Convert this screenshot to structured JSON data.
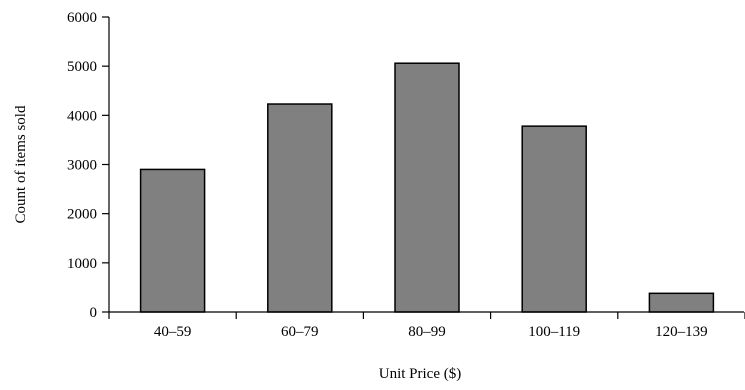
{
  "chart_data": {
    "type": "bar",
    "title": "",
    "xlabel": "Unit Price ($)",
    "ylabel": "Count of items sold",
    "categories": [
      "40–59",
      "60–79",
      "80–99",
      "100–119",
      "120–139"
    ],
    "values": [
      2900,
      4230,
      5060,
      3780,
      380
    ],
    "ylim": [
      0,
      6000
    ],
    "yticks": [
      "0",
      "1000",
      "2000",
      "3000",
      "4000",
      "5000",
      "6000"
    ],
    "grid": false,
    "legend": "none",
    "colors": {
      "bar_fill": "#808080",
      "bar_stroke": "#000000",
      "axis": "#000000"
    }
  }
}
